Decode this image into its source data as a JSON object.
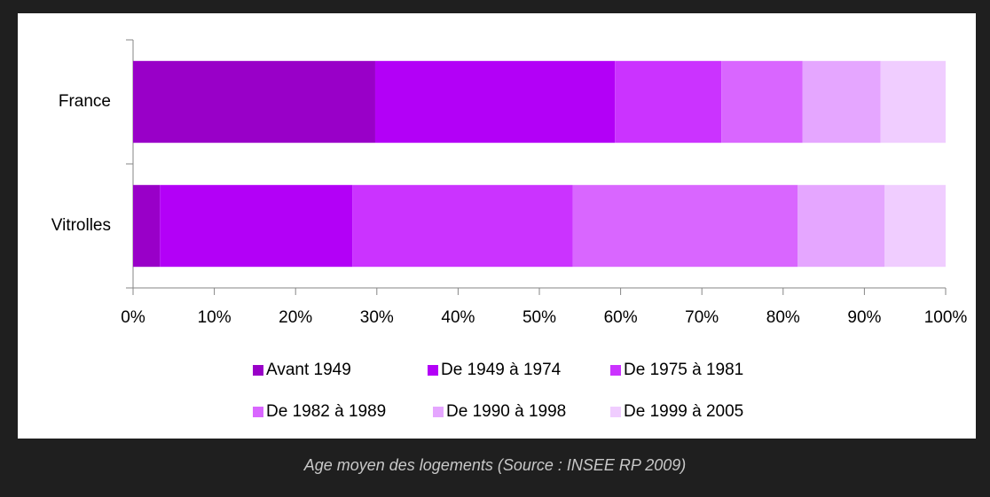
{
  "chart_data": {
    "type": "stacked-barh",
    "caption": "Age moyen des logements (Source : INSEE RP 2009)",
    "categories": [
      "France",
      "Vitrolles"
    ],
    "series": [
      {
        "name": "Avant 1949",
        "color": "#9900c8",
        "values": [
          29.8,
          3.3
        ]
      },
      {
        "name": "De 1949 à 1974",
        "color": "#b300f7",
        "values": [
          29.5,
          23.7
        ]
      },
      {
        "name": "De 1975 à 1981",
        "color": "#cb33ff",
        "values": [
          13.1,
          27.1
        ]
      },
      {
        "name": "De 1982 à 1989",
        "color": "#d966ff",
        "values": [
          10.0,
          27.7
        ]
      },
      {
        "name": "De 1990 à 1998",
        "color": "#e5a6ff",
        "values": [
          9.6,
          10.7
        ]
      },
      {
        "name": "De 1999 à 2005",
        "color": "#f0cdff",
        "values": [
          8.0,
          7.5
        ]
      }
    ],
    "xlim": [
      0,
      100
    ],
    "xticks": [
      {
        "value": 0,
        "label": "0%"
      },
      {
        "value": 10,
        "label": "10%"
      },
      {
        "value": 20,
        "label": "20%"
      },
      {
        "value": 30,
        "label": "30%"
      },
      {
        "value": 40,
        "label": "40%"
      },
      {
        "value": 50,
        "label": "50%"
      },
      {
        "value": 60,
        "label": "60%"
      },
      {
        "value": 70,
        "label": "70%"
      },
      {
        "value": 80,
        "label": "80%"
      },
      {
        "value": 90,
        "label": "90%"
      },
      {
        "value": 100,
        "label": "100%"
      }
    ],
    "legend": "bottom"
  }
}
